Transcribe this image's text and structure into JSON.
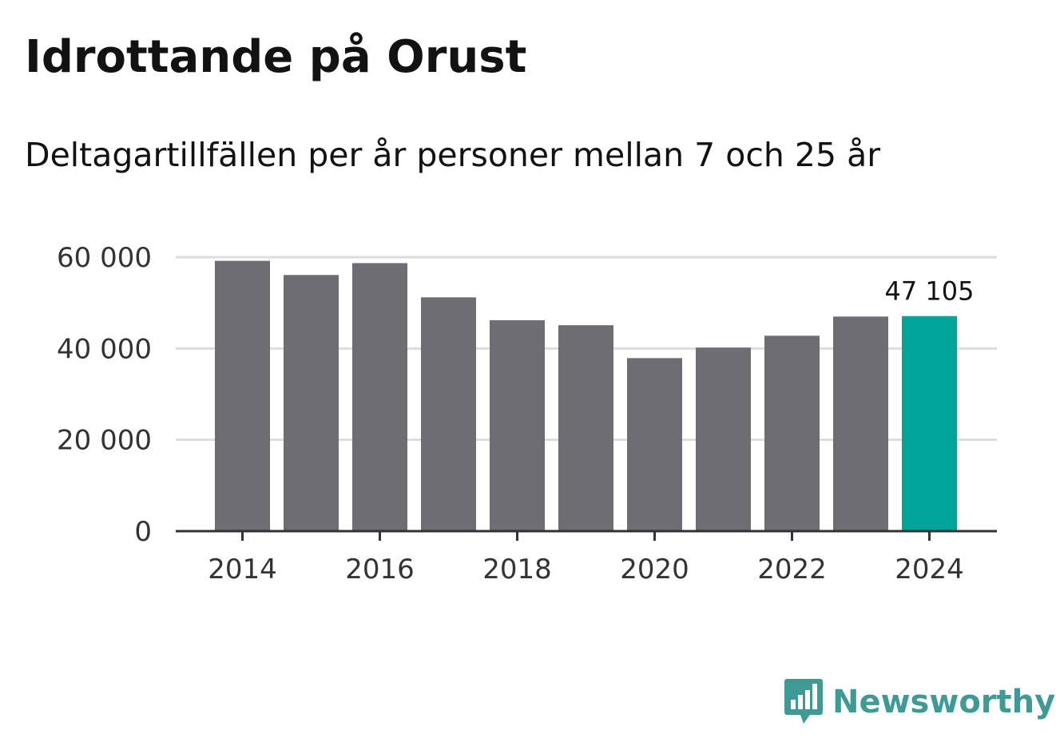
{
  "chart_data": {
    "type": "bar",
    "title": "Idrottande på Orust",
    "subtitle": "Deltagartillfällen per år personer mellan 7 och 25 år",
    "categories": [
      "2014",
      "2015",
      "2016",
      "2017",
      "2018",
      "2019",
      "2020",
      "2021",
      "2022",
      "2023",
      "2024"
    ],
    "values": [
      59200,
      56100,
      58700,
      51200,
      46200,
      45100,
      37900,
      40200,
      42800,
      47000,
      47105
    ],
    "ylim": [
      0,
      60000
    ],
    "yticks": [
      0,
      20000,
      40000,
      60000
    ],
    "ytick_labels": [
      "0",
      "20 000",
      "40 000",
      "60 000"
    ],
    "xtick_labels": [
      "2014",
      "2016",
      "2018",
      "2020",
      "2022",
      "2024"
    ],
    "highlight_index": 10,
    "highlight_label": "47 105",
    "xlabel": "",
    "ylabel": "",
    "grid": true,
    "colors": {
      "bar": "#6e6d73",
      "highlight": "#00a599",
      "grid": "#dddddd",
      "axis": "#333333"
    }
  },
  "brand": {
    "name": "Newsworthy",
    "color": "#3d9a95",
    "icon": "newsworthy-bar-chart-logo-icon"
  }
}
